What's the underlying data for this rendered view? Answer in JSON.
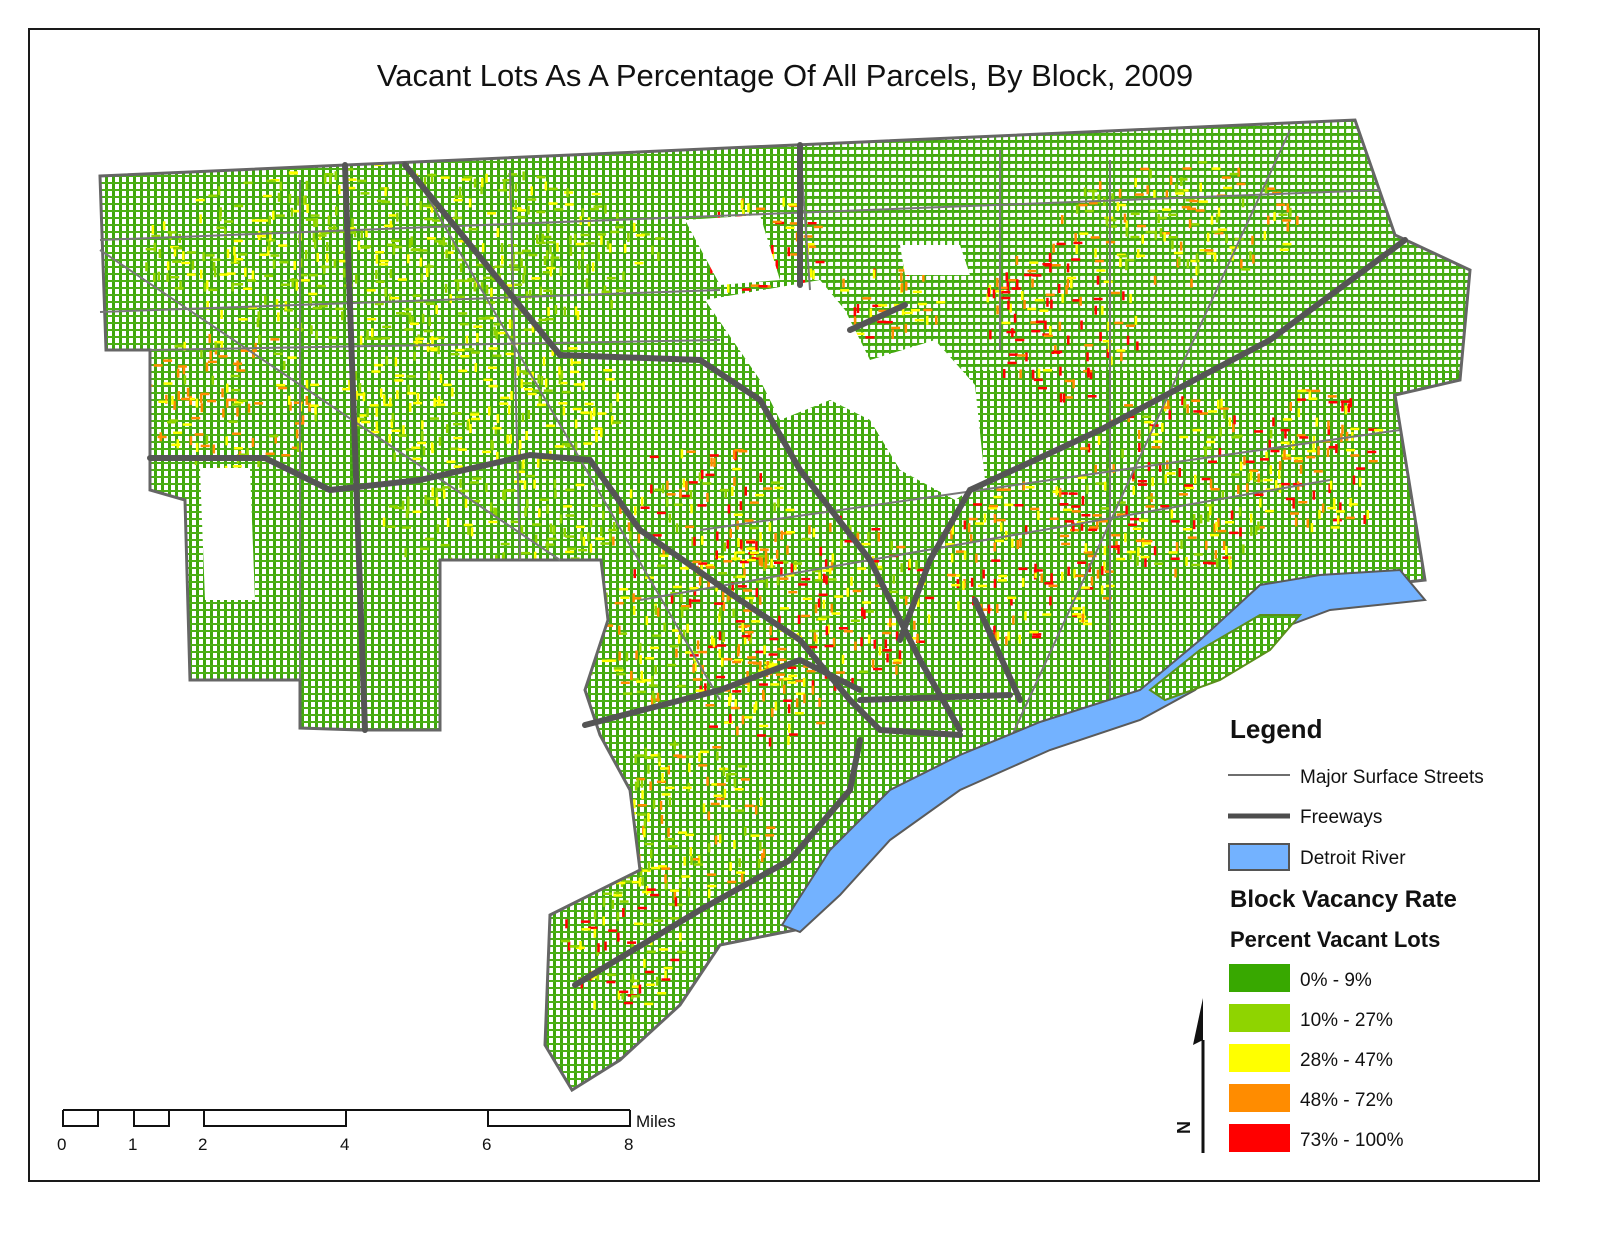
{
  "title": "Vacant Lots As A Percentage Of All Parcels, By Block, 2009",
  "legend": {
    "heading": "Legend",
    "items": [
      {
        "label": "Major Surface Streets",
        "symbol": "thin-line",
        "color": "#6e6e6e"
      },
      {
        "label": "Freeways",
        "symbol": "thick-line",
        "color": "#4d4d4d"
      },
      {
        "label": "Detroit River",
        "symbol": "water-box",
        "color": "#73b2ff"
      }
    ],
    "vacancy_heading": "Block Vacancy Rate",
    "vacancy_subheading": "Percent Vacant Lots",
    "classes": [
      {
        "label": "0% - 9%",
        "color": "#38a800",
        "min": 0,
        "max": 9
      },
      {
        "label": "10% - 27%",
        "color": "#8fd400",
        "min": 10,
        "max": 27
      },
      {
        "label": "28% - 47%",
        "color": "#ffff00",
        "min": 28,
        "max": 47
      },
      {
        "label": "48% - 72%",
        "color": "#ff8c00",
        "min": 48,
        "max": 72
      },
      {
        "label": "73% - 100%",
        "color": "#ff0000",
        "min": 73,
        "max": 100
      }
    ]
  },
  "scale_bar": {
    "unit": "Miles",
    "ticks": [
      "0",
      "1",
      "2",
      "4",
      "6",
      "8"
    ]
  },
  "north_arrow": {
    "label": "N"
  },
  "colors": {
    "outline": "#666666",
    "freeway": "#555555",
    "street": "#777777",
    "water": "#73b2ff"
  }
}
